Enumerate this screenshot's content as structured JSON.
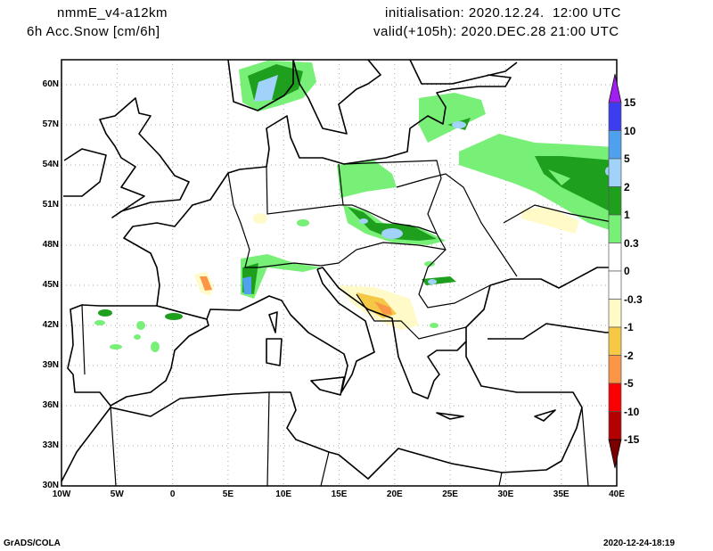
{
  "header": {
    "model": "nmmE_v4-a12km",
    "field": "6h Acc.Snow [cm/6h]",
    "initialisation": "initialisation: 2020.12.24.  12:00 UTC",
    "valid": "valid(+105h): 2020.DEC.28 21:00 UTC"
  },
  "axes": {
    "lon_labels": [
      "10W",
      "5W",
      "0",
      "5E",
      "10E",
      "15E",
      "20E",
      "25E",
      "30E",
      "35E",
      "40E"
    ],
    "lat_labels": [
      "30N",
      "33N",
      "36N",
      "39N",
      "42N",
      "45N",
      "48N",
      "51N",
      "54N",
      "57N",
      "60N"
    ]
  },
  "colorbar": {
    "labels": [
      "15",
      "10",
      "5",
      "2",
      "1",
      "0.3",
      "0",
      "-0.3",
      "-1",
      "-2",
      "-5",
      "-10",
      "-15"
    ],
    "colors": [
      "#a01ef0",
      "#3c3cf0",
      "#50a0f0",
      "#a0d2fa",
      "#1ea01e",
      "#78f078",
      "#ffffff",
      "#ffffff",
      "#fffac8",
      "#f5c846",
      "#fa9646",
      "#fa0000",
      "#b40000",
      "#780000"
    ]
  },
  "footer": {
    "left": "GrADS/COLA",
    "right": "2020-12-24-18:19"
  }
}
